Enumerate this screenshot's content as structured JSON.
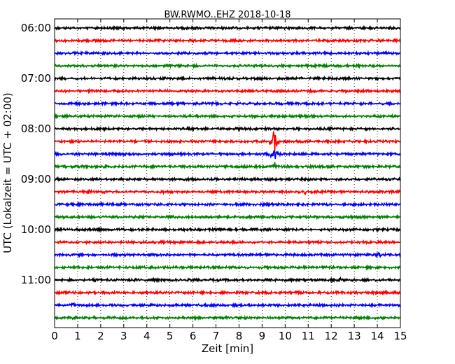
{
  "chart_data": {
    "type": "line",
    "title": "BW.RWMO..EHZ 2018-10-18",
    "xlabel": "Zeit  [min]",
    "ylabel": "UTC (Lokalzeit = UTC + 02:00)",
    "xlim": [
      0,
      15
    ],
    "x_ticks": [
      0,
      1,
      2,
      3,
      4,
      5,
      6,
      7,
      8,
      9,
      10,
      11,
      12,
      13,
      14,
      15
    ],
    "grid": "vertical-dotted",
    "trace_interval_min": 15,
    "y_tick_labels": [
      "06:00",
      "07:00",
      "08:00",
      "09:00",
      "10:00",
      "11:00"
    ],
    "color_cycle": [
      "#000000",
      "#ff0000",
      "#0000ff",
      "#008000"
    ],
    "traces": [
      {
        "start": "06:00",
        "color": "#000000"
      },
      {
        "start": "06:15",
        "color": "#ff0000"
      },
      {
        "start": "06:30",
        "color": "#0000ff"
      },
      {
        "start": "06:45",
        "color": "#008000"
      },
      {
        "start": "07:00",
        "color": "#000000"
      },
      {
        "start": "07:15",
        "color": "#ff0000"
      },
      {
        "start": "07:30",
        "color": "#0000ff"
      },
      {
        "start": "07:45",
        "color": "#008000"
      },
      {
        "start": "08:00",
        "color": "#000000"
      },
      {
        "start": "08:15",
        "color": "#ff0000"
      },
      {
        "start": "08:30",
        "color": "#0000ff"
      },
      {
        "start": "08:45",
        "color": "#008000"
      },
      {
        "start": "09:00",
        "color": "#000000"
      },
      {
        "start": "09:15",
        "color": "#ff0000"
      },
      {
        "start": "09:30",
        "color": "#0000ff"
      },
      {
        "start": "09:45",
        "color": "#008000"
      },
      {
        "start": "10:00",
        "color": "#000000"
      },
      {
        "start": "10:15",
        "color": "#ff0000"
      },
      {
        "start": "10:30",
        "color": "#0000ff"
      },
      {
        "start": "10:45",
        "color": "#008000"
      },
      {
        "start": "11:00",
        "color": "#000000"
      },
      {
        "start": "11:15",
        "color": "#ff0000"
      },
      {
        "start": "11:30",
        "color": "#0000ff"
      },
      {
        "start": "11:45",
        "color": "#008000"
      }
    ],
    "events": [
      {
        "trace_start": "08:15",
        "minute": 9.55,
        "amplitude": 2.0
      },
      {
        "trace_start": "08:30",
        "minute": 9.55,
        "amplitude": 1.6
      },
      {
        "trace_start": "08:45",
        "minute": 9.55,
        "amplitude": 0.6
      },
      {
        "trace_start": "09:15",
        "minute": 1.5,
        "amplitude": 0.3
      },
      {
        "trace_start": "09:15",
        "minute": 4.65,
        "amplitude": 0.35
      },
      {
        "trace_start": "09:15",
        "minute": 10.85,
        "amplitude": 0.35
      },
      {
        "trace_start": "10:30",
        "minute": 14.05,
        "amplitude": 0.45
      },
      {
        "trace_start": "11:00",
        "minute": 12.4,
        "amplitude": 0.3
      },
      {
        "trace_start": "11:30",
        "minute": 0.8,
        "amplitude": 0.3
      }
    ]
  }
}
